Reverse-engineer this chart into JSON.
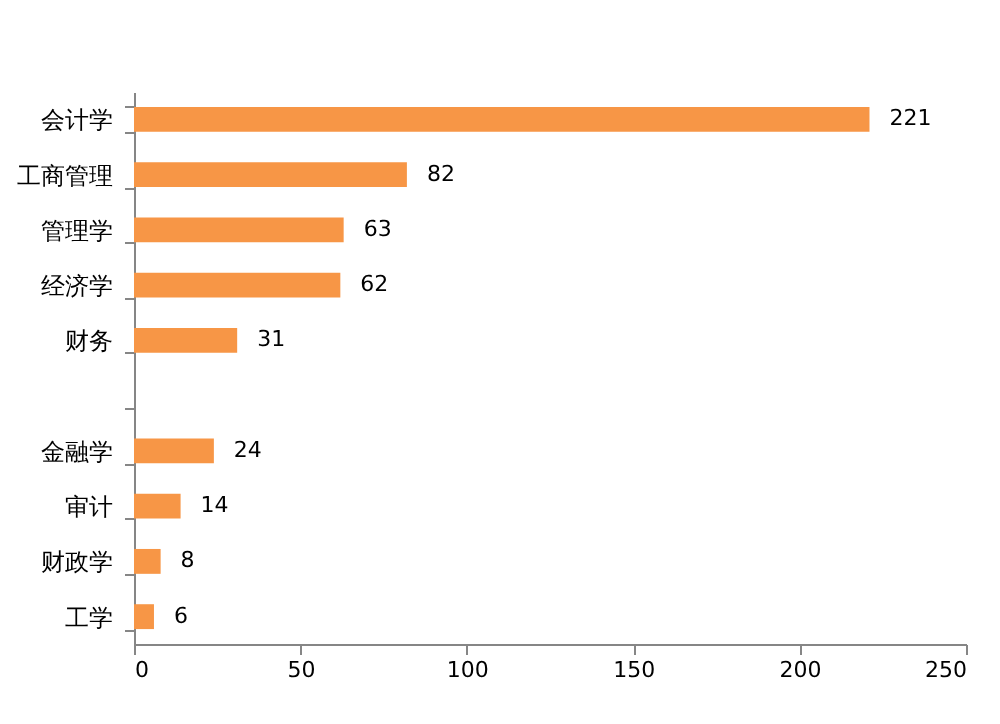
{
  "chart_data": {
    "type": "bar",
    "orientation": "horizontal",
    "categories": [
      "会计学",
      "工商管理",
      "管理学",
      "经济学",
      "财务",
      null,
      "金融学",
      "审计",
      "财政学",
      "工学"
    ],
    "values": [
      221,
      82,
      63,
      62,
      31,
      null,
      24,
      14,
      8,
      6
    ],
    "color": "#f79646",
    "xlim": [
      0,
      250
    ],
    "xticks": [
      0,
      50,
      100,
      150,
      200,
      250
    ],
    "grid": false,
    "data_labels": true
  }
}
